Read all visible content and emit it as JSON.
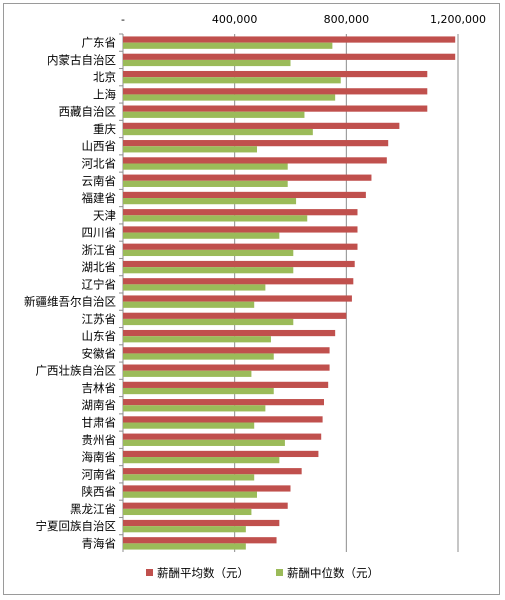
{
  "chart_data": {
    "type": "bar",
    "orientation": "horizontal",
    "categories": [
      "广东省",
      "内蒙古自治区",
      "北京",
      "上海",
      "西藏自治区",
      "重庆",
      "山西省",
      "河北省",
      "云南省",
      "福建省",
      "天津",
      "四川省",
      "浙江省",
      "湖北省",
      "辽宁省",
      "新疆维吾尔自治区",
      "江苏省",
      "山东省",
      "安徽省",
      "广西壮族自治区",
      "吉林省",
      "湖南省",
      "甘肃省",
      "贵州省",
      "海南省",
      "河南省",
      "陕西省",
      "黑龙江省",
      "宁夏回族自治区",
      "青海省"
    ],
    "series": [
      {
        "name": "薪酬平均数（元）",
        "color": "#c0504d",
        "values": [
          1190000,
          1190000,
          1090000,
          1090000,
          1090000,
          990000,
          950000,
          945000,
          890000,
          870000,
          840000,
          840000,
          840000,
          830000,
          825000,
          820000,
          800000,
          760000,
          740000,
          740000,
          735000,
          720000,
          715000,
          710000,
          700000,
          640000,
          600000,
          590000,
          560000,
          550000
        ]
      },
      {
        "name": "薪酬中位数（元）",
        "color": "#9bbb59",
        "values": [
          750000,
          600000,
          780000,
          760000,
          650000,
          680000,
          480000,
          590000,
          590000,
          620000,
          660000,
          560000,
          610000,
          610000,
          510000,
          470000,
          610000,
          530000,
          540000,
          460000,
          540000,
          510000,
          470000,
          580000,
          560000,
          470000,
          480000,
          460000,
          440000,
          440000
        ]
      }
    ],
    "x_ticks": [
      "-",
      "400,000",
      "800,000",
      "1,200,000"
    ],
    "xlim": [
      0,
      1200000
    ],
    "grid": true,
    "legend_position": "bottom"
  }
}
